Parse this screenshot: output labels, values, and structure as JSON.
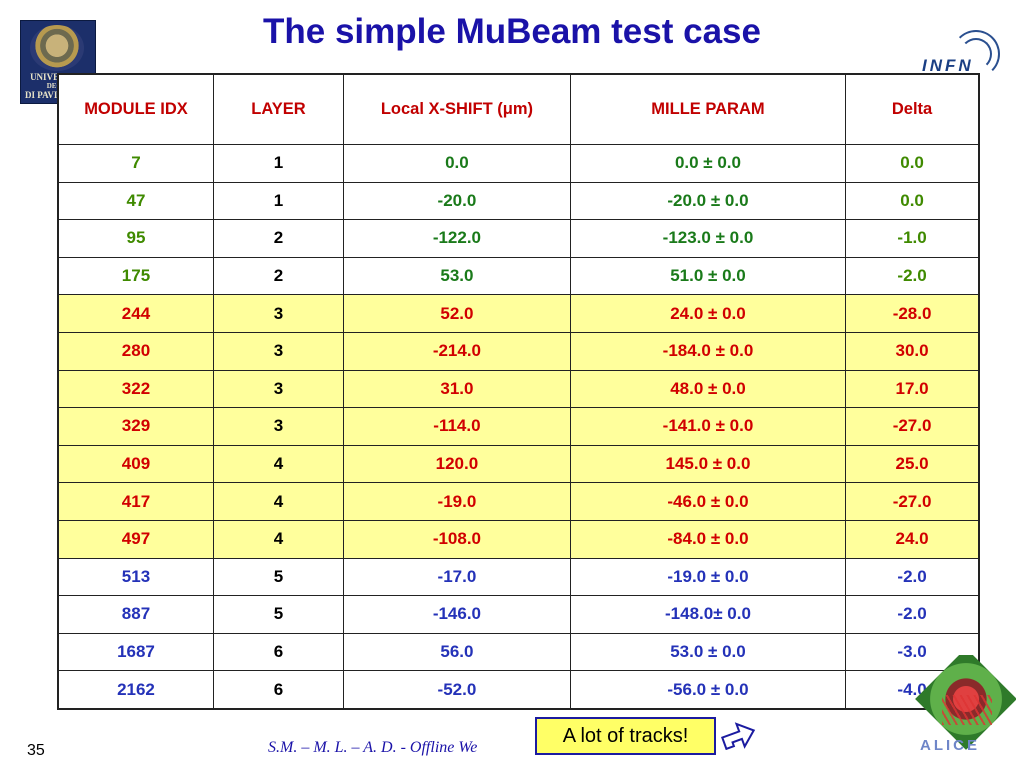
{
  "title": "The simple MuBeam test case",
  "logos": {
    "left": {
      "lines": [
        "UNIVERSITA",
        "DEGLI",
        "DI PAVIA"
      ]
    },
    "right": {
      "text": "INFN"
    },
    "bottom_right": {
      "text": "ALICE"
    }
  },
  "table": {
    "headers": [
      "MODULE IDX",
      "LAYER",
      "Local X-SHIFT (μm)",
      "MILLE PARAM",
      "Delta"
    ],
    "rows": [
      {
        "module": "7",
        "layer": "1",
        "shift": "0.0",
        "mille": "0.0 ± 0.0",
        "delta": "0.0",
        "group": "green"
      },
      {
        "module": "47",
        "layer": "1",
        "shift": "-20.0",
        "mille": "-20.0 ± 0.0",
        "delta": "0.0",
        "group": "green"
      },
      {
        "module": "95",
        "layer": "2",
        "shift": "-122.0",
        "mille": "-123.0 ± 0.0",
        "delta": "-1.0",
        "group": "green"
      },
      {
        "module": "175",
        "layer": "2",
        "shift": "53.0",
        "mille": "51.0 ± 0.0",
        "delta": "-2.0",
        "group": "green"
      },
      {
        "module": "244",
        "layer": "3",
        "shift": "52.0",
        "mille": "24.0 ± 0.0",
        "delta": "-28.0",
        "group": "red"
      },
      {
        "module": "280",
        "layer": "3",
        "shift": "-214.0",
        "mille": "-184.0 ± 0.0",
        "delta": "30.0",
        "group": "red"
      },
      {
        "module": "322",
        "layer": "3",
        "shift": "31.0",
        "mille": "48.0 ± 0.0",
        "delta": "17.0",
        "group": "red"
      },
      {
        "module": "329",
        "layer": "3",
        "shift": "-114.0",
        "mille": "-141.0 ± 0.0",
        "delta": "-27.0",
        "group": "red"
      },
      {
        "module": "409",
        "layer": "4",
        "shift": "120.0",
        "mille": "145.0 ± 0.0",
        "delta": "25.0",
        "group": "red"
      },
      {
        "module": "417",
        "layer": "4",
        "shift": "-19.0",
        "mille": "-46.0 ± 0.0",
        "delta": "-27.0",
        "group": "red"
      },
      {
        "module": "497",
        "layer": "4",
        "shift": "-108.0",
        "mille": "-84.0 ± 0.0",
        "delta": "24.0",
        "group": "red"
      },
      {
        "module": "513",
        "layer": "5",
        "shift": "-17.0",
        "mille": "-19.0 ± 0.0",
        "delta": "-2.0",
        "group": "blue"
      },
      {
        "module": "887",
        "layer": "5",
        "shift": "-146.0",
        "mille": "-148.0± 0.0",
        "delta": "-2.0",
        "group": "blue"
      },
      {
        "module": "1687",
        "layer": "6",
        "shift": "56.0",
        "mille": "53.0 ± 0.0",
        "delta": "-3.0",
        "group": "blue"
      },
      {
        "module": "2162",
        "layer": "6",
        "shift": "-52.0",
        "mille": "-56.0 ± 0.0",
        "delta": "-4.0",
        "group": "blue"
      }
    ]
  },
  "page_number": "35",
  "footer": "S.M. – M. L. – A. D.   - Offline We",
  "callout": "A lot of tracks!",
  "colors": {
    "title": "#1a12a8",
    "header_text": "#c10000",
    "highlight_row": "#ffff9c",
    "callout_bg": "#ffff66"
  }
}
